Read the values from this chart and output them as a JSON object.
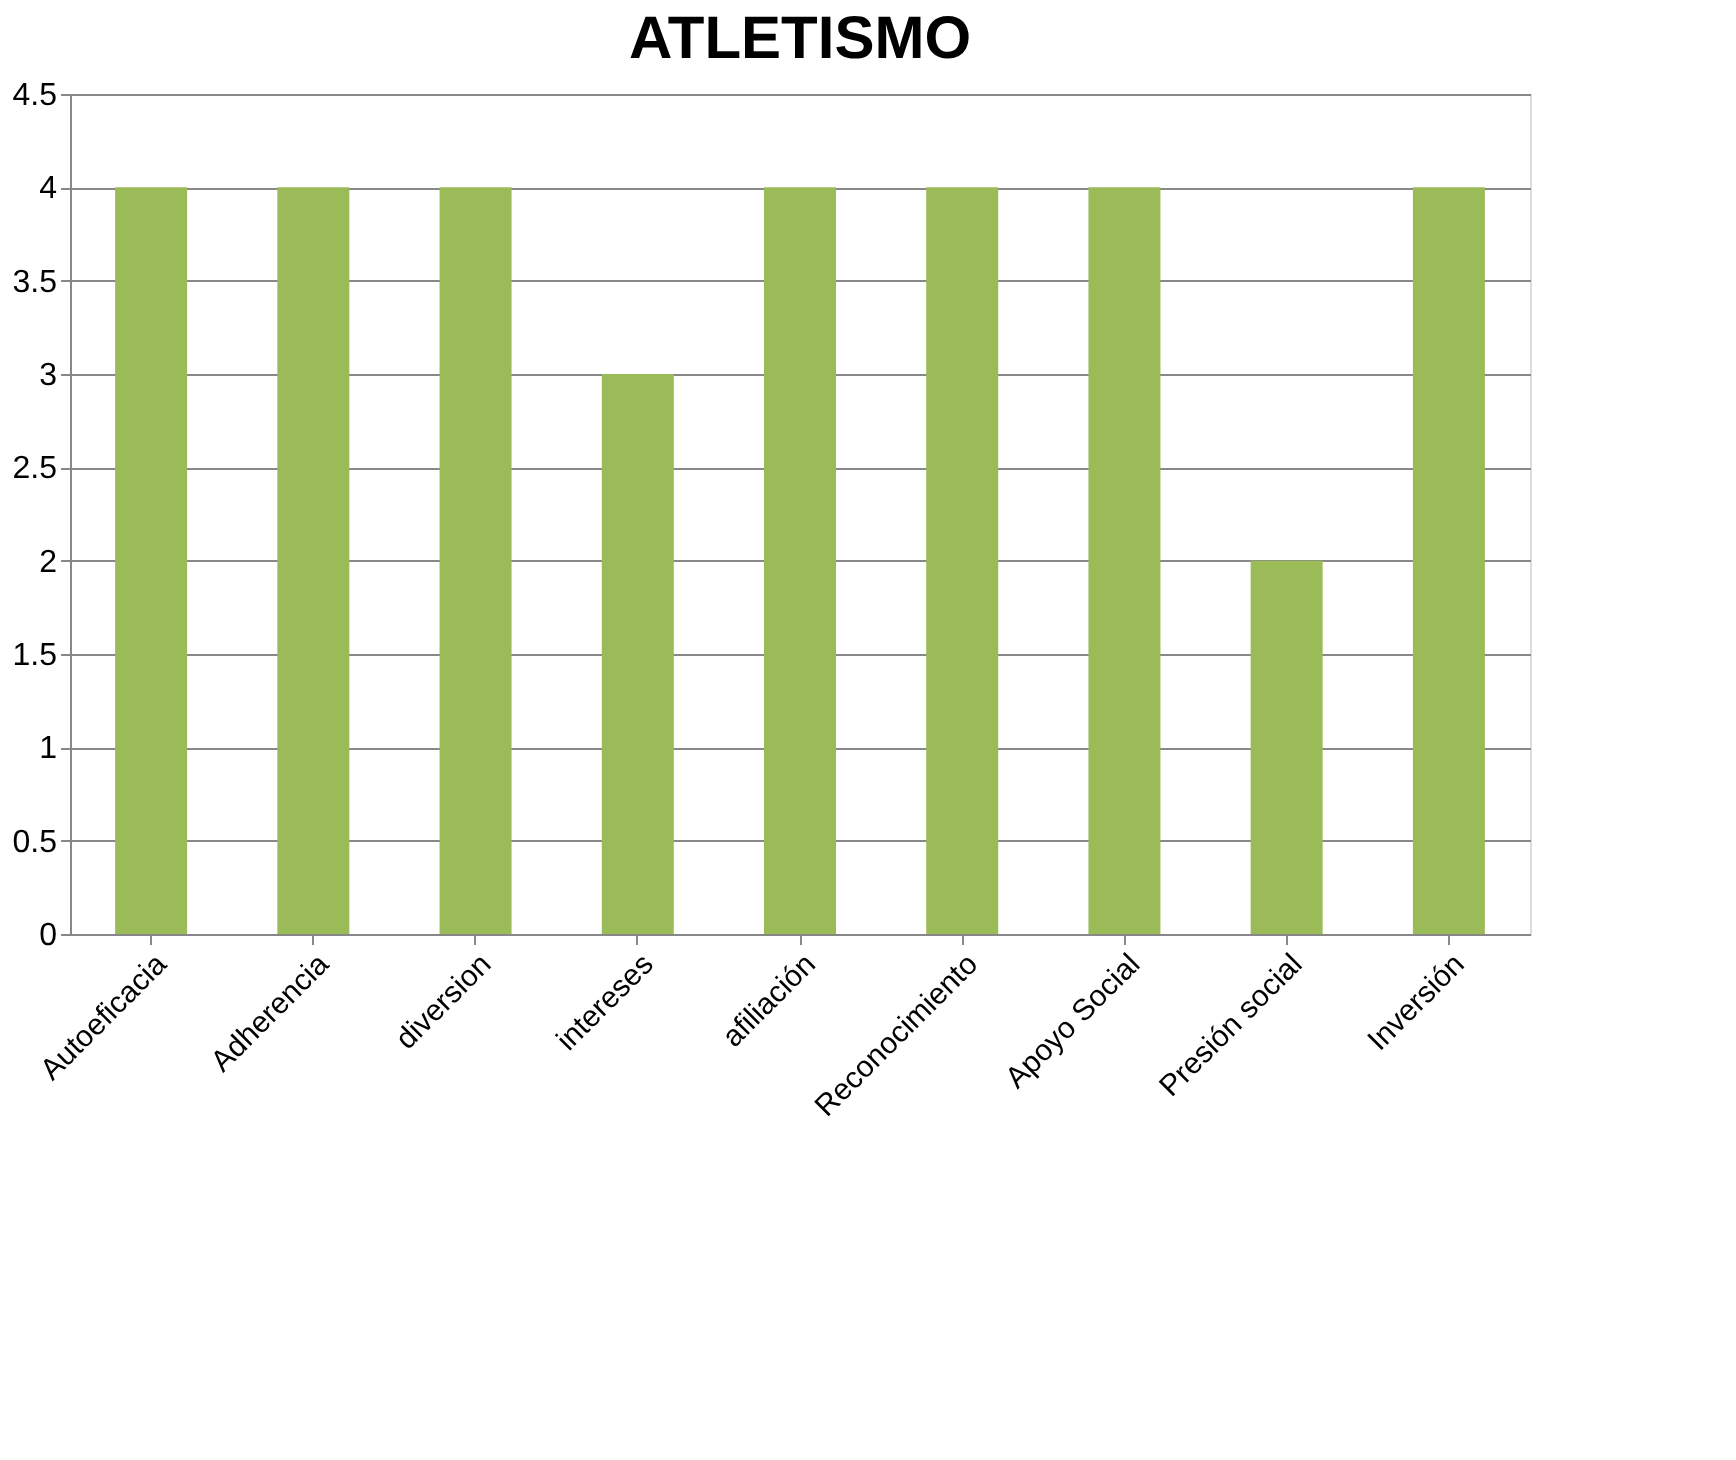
{
  "chart_data": {
    "type": "bar",
    "title": "ATLETISMO",
    "categories": [
      "Autoeficacia",
      "Adherencia",
      "diversion",
      "intereses",
      "afiliación",
      "Reconocimiento",
      "Apoyo Social",
      "Presión social",
      "Inversión"
    ],
    "values": [
      4,
      4,
      4,
      3,
      4,
      4,
      4,
      2,
      4
    ],
    "color": "#9bbb59",
    "ylim": [
      0,
      4.5
    ],
    "yticks": [
      0,
      0.5,
      1,
      1.5,
      2,
      2.5,
      3,
      3.5,
      4,
      4.5
    ],
    "grid": "y"
  }
}
